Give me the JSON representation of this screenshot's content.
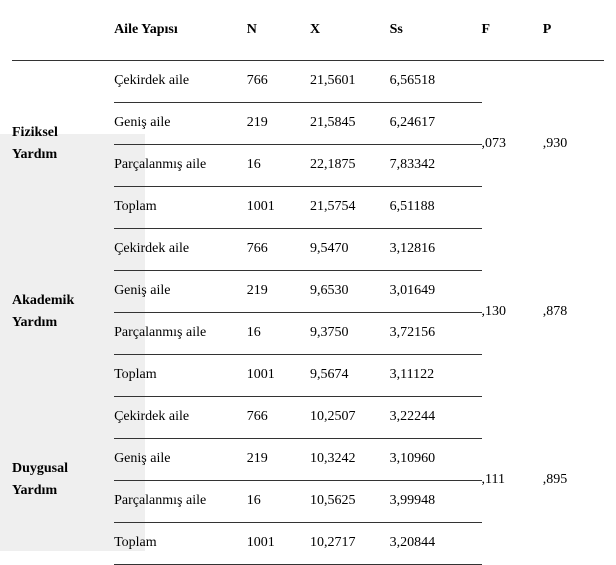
{
  "columns": {
    "group": "",
    "family_structure": "Aile Yapısı",
    "n": "N",
    "x": "X",
    "ss": "Ss",
    "f": "F",
    "p": "P"
  },
  "labels": {
    "cekirdek": "Çekirdek aile",
    "genis": "Geniş aile",
    "parcalanmis": "Parçalanmış aile",
    "toplam": "Toplam"
  },
  "groups": [
    {
      "name_line1": "Fiziksel",
      "name_line2": "Yardım",
      "rows": [
        {
          "n": "766",
          "x": "21,5601",
          "ss": "6,56518"
        },
        {
          "n": "219",
          "x": "21,5845",
          "ss": "6,24617"
        },
        {
          "n": "16",
          "x": "22,1875",
          "ss": "7,83342"
        },
        {
          "n": "1001",
          "x": "21,5754",
          "ss": "6,51188"
        }
      ],
      "f": ",073",
      "p": ",930"
    },
    {
      "name_line1": "Akademik",
      "name_line2": "Yardım",
      "rows": [
        {
          "n": "766",
          "x": "9,5470",
          "ss": "3,12816"
        },
        {
          "n": "219",
          "x": "9,6530",
          "ss": "3,01649"
        },
        {
          "n": "16",
          "x": "9,3750",
          "ss": "3,72156"
        },
        {
          "n": "1001",
          "x": "9,5674",
          "ss": "3,11122"
        }
      ],
      "f": ",130",
      "p": ",878"
    },
    {
      "name_line1": "Duygusal",
      "name_line2": "Yardım",
      "rows": [
        {
          "n": "766",
          "x": "10,2507",
          "ss": "3,22244"
        },
        {
          "n": "219",
          "x": "10,3242",
          "ss": "3,10960"
        },
        {
          "n": "16",
          "x": "10,5625",
          "ss": "3,99948"
        },
        {
          "n": "1001",
          "x": "10,2717",
          "ss": "3,20844"
        }
      ],
      "f": ",111",
      "p": ",895"
    }
  ]
}
